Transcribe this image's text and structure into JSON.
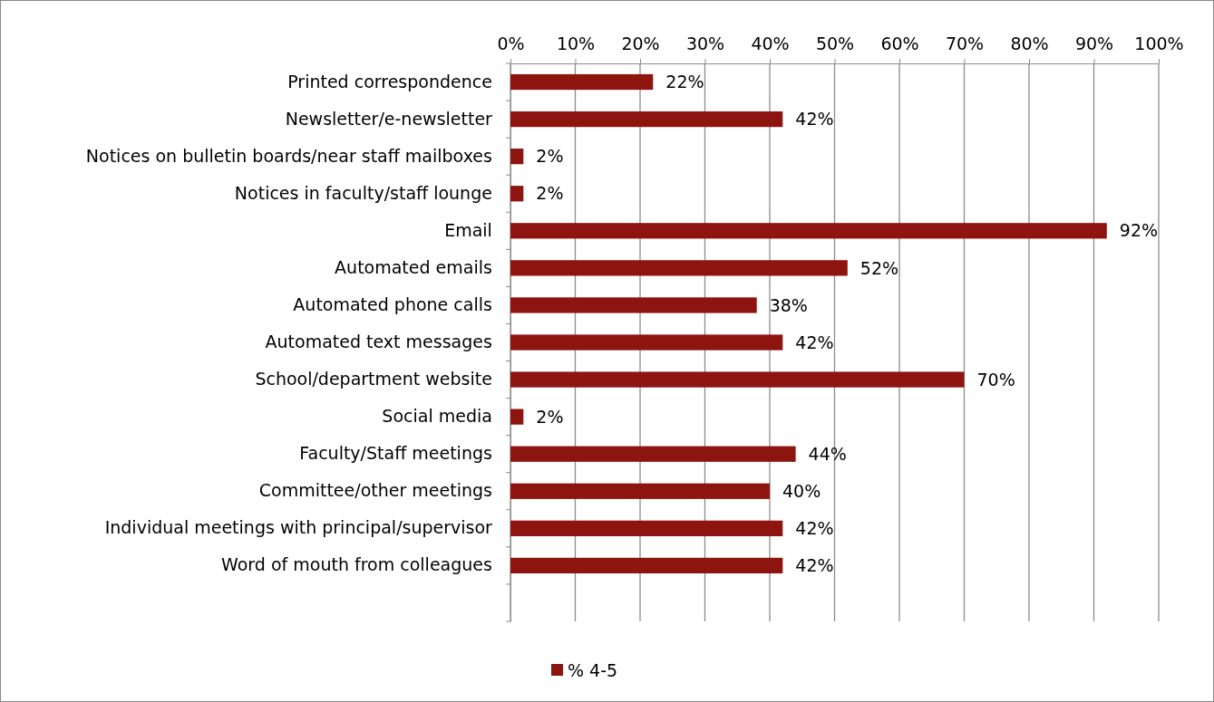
{
  "chart_data": {
    "type": "bar",
    "orientation": "horizontal",
    "categories": [
      "Printed correspondence",
      "Newsletter/e-newsletter",
      "Notices on bulletin boards/near staff mailboxes",
      "Notices in faculty/staff lounge",
      "Email",
      "Automated emails",
      "Automated phone calls",
      "Automated text messages",
      "School/department website",
      "Social media",
      "Faculty/Staff meetings",
      "Committee/other meetings",
      "Individual meetings with principal/supervisor",
      "Word of mouth from colleagues",
      null
    ],
    "series": [
      {
        "name": "% 4-5",
        "color": "#8e1410",
        "values": [
          22,
          42,
          2,
          2,
          92,
          52,
          38,
          42,
          70,
          2,
          44,
          40,
          42,
          42,
          null
        ],
        "value_labels": [
          "22%",
          "42%",
          "2%",
          "2%",
          "92%",
          "52%",
          "38%",
          "42%",
          "70%",
          "2%",
          "44%",
          "40%",
          "42%",
          "42%",
          null
        ]
      }
    ],
    "xlim": [
      0,
      100
    ],
    "xticks": [
      {
        "value": 0,
        "label": "0%"
      },
      {
        "value": 10,
        "label": "10%"
      },
      {
        "value": 20,
        "label": "20%"
      },
      {
        "value": 30,
        "label": "30%"
      },
      {
        "value": 40,
        "label": "40%"
      },
      {
        "value": 50,
        "label": "50%"
      },
      {
        "value": 60,
        "label": "60%"
      },
      {
        "value": 70,
        "label": "70%"
      },
      {
        "value": 80,
        "label": "80%"
      },
      {
        "value": 90,
        "label": "90%"
      },
      {
        "value": 100,
        "label": "100%"
      }
    ],
    "grid": "x",
    "legend": "bottom"
  }
}
